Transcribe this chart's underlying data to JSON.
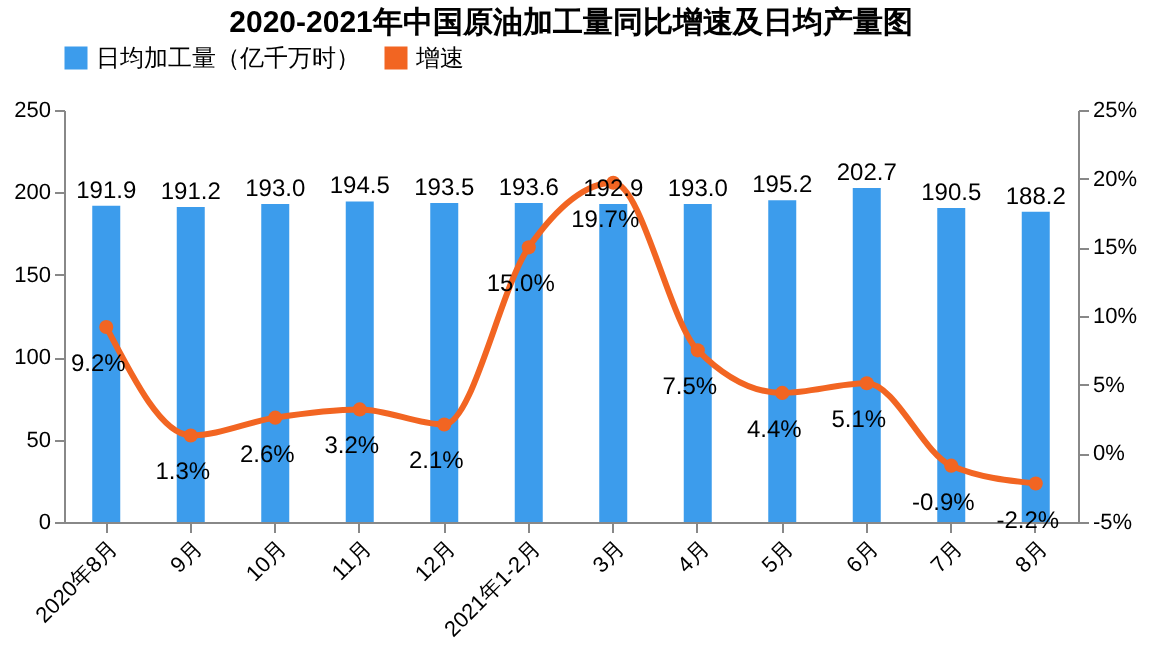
{
  "chart_data": {
    "type": "bar",
    "title": "2020-2021年中国原油加工量同比增速及日均产量图",
    "categories": [
      "2020年8月",
      "9月",
      "10月",
      "11月",
      "12月",
      "2021年1-2月",
      "3月",
      "4月",
      "5月",
      "6月",
      "7月",
      "8月"
    ],
    "series": [
      {
        "name": "日均加工量（亿千万时）",
        "color": "#3c9cec",
        "values": [
          191.9,
          191.2,
          193.0,
          194.5,
          193.5,
          193.6,
          192.9,
          193.0,
          195.2,
          202.7,
          190.5,
          188.2
        ],
        "value_labels": [
          "191.9",
          "191.2",
          "193.0",
          "194.5",
          "193.5",
          "193.6",
          "192.9",
          "193.0",
          "195.2",
          "202.7",
          "190.5",
          "188.2"
        ]
      },
      {
        "name": "增速",
        "type": "line",
        "axis": "y2",
        "color": "#f26522",
        "values": [
          9.2,
          1.3,
          2.6,
          3.2,
          2.1,
          15.0,
          19.7,
          7.5,
          4.4,
          5.1,
          -0.9,
          -2.2
        ],
        "value_labels": [
          "9.2%",
          "1.3%",
          "2.6%",
          "3.2%",
          "2.1%",
          "15.0%",
          "19.7%",
          "7.5%",
          "4.4%",
          "5.1%",
          "-0.9%",
          "-2.2%"
        ]
      }
    ],
    "ylim": [
      0,
      250
    ],
    "yticks": [
      0,
      50,
      100,
      150,
      200,
      250
    ],
    "y2lim": [
      -5,
      25
    ],
    "y2ticks": [
      {
        "value": -5,
        "label": "-5%"
      },
      {
        "value": 0,
        "label": "0%"
      },
      {
        "value": 5,
        "label": "5%"
      },
      {
        "value": 10,
        "label": "10%"
      },
      {
        "value": 15,
        "label": "15%"
      },
      {
        "value": 20,
        "label": "20%"
      },
      {
        "value": 25,
        "label": "25%"
      }
    ],
    "legend": "top",
    "marker": "circle"
  }
}
